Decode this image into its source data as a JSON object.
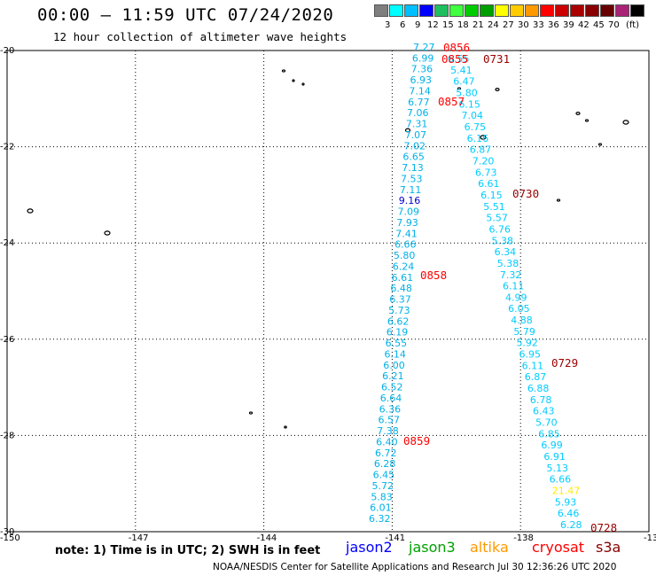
{
  "title": "00:00 – 11:59 UTC 07/24/2020",
  "subtitle": "12 hour collection of altimeter wave heights",
  "legend": {
    "colors": [
      "#7f7f7f",
      "#00ffff",
      "#00bfff",
      "#0000ff",
      "#1fbf5f",
      "#3fff3f",
      "#00cc00",
      "#009f00",
      "#ffff00",
      "#ffcc00",
      "#ff9900",
      "#ff0000",
      "#cc0000",
      "#aa0000",
      "#880000",
      "#660000",
      "#aa2277",
      "#000000"
    ],
    "labels": [
      "3",
      "6",
      "9",
      "12",
      "15",
      "18",
      "21",
      "24",
      "27",
      "30",
      "33",
      "36",
      "39",
      "42",
      "45",
      "70"
    ],
    "unit": "(ft)"
  },
  "map": {
    "lon_range": [
      -150,
      -135
    ],
    "lat_range": [
      -30,
      -20
    ],
    "y_labels": [
      "-20",
      "-22",
      "-24",
      "-26",
      "-28",
      "-30"
    ],
    "x_labels": [
      "-150",
      "-147",
      "-144",
      "-141",
      "-138",
      "-13"
    ],
    "grid": "dotted",
    "tracks": [
      {
        "satellite": "cryosat",
        "color": "#00bfff",
        "values": [
          "7.27",
          "6.99",
          "7.36",
          "6.93",
          "7.14",
          "6.77",
          "7.06",
          "7.31",
          "7.07",
          "7.02",
          "6.65",
          "7.13",
          "7.53",
          "7.11",
          "9.16",
          "7.09",
          "7.93",
          "7.41",
          "6.66",
          "5.80",
          "6.24",
          "6.61",
          "6.48",
          "6.37",
          "5.73",
          "6.62",
          "6.19",
          "6.55",
          "6.14",
          "6.00",
          "6.21",
          "6.52",
          "6.64",
          "6.36",
          "6.57",
          "7.38",
          "6.40",
          "6.72",
          "6.28",
          "6.45",
          "5.72",
          "5.83",
          "6.01",
          "6.32"
        ]
      },
      {
        "satellite": "s3a",
        "color": "#00ccff",
        "values": [
          "6.55",
          "5.41",
          "6.47",
          "5.80",
          "6.15",
          "7.04",
          "6.75",
          "6.16",
          "6.87",
          "7.20",
          "6.73",
          "6.61",
          "6.15",
          "5.51",
          "5.57",
          "6.76",
          "5.38",
          "6.34",
          "5.38",
          "7.32",
          "6.11",
          "4.99",
          "6.05",
          "4.88",
          "5.79",
          "5.92",
          "6.95",
          "6.11",
          "6.87",
          "6.88",
          "6.78",
          "6.43",
          "5.70",
          "6.85",
          "6.99",
          "6.91",
          "5.13",
          "6.66",
          "21.47",
          "5.93",
          "6.46",
          "6.28"
        ]
      }
    ],
    "time_labels": [
      "0856",
      "0855",
      "0731",
      "0857",
      "0730",
      "0858",
      "0729",
      "0859",
      "0728"
    ]
  },
  "note": "note:  1) Time is in UTC;  2) SWH is in feet",
  "missions": [
    "jason2",
    "jason3",
    "altika",
    "cryosat",
    "s3a"
  ],
  "credit": "NOAA/NESDIS Center for Satellite Applications and Research    Jul 30 12:36:26 UTC 2020"
}
